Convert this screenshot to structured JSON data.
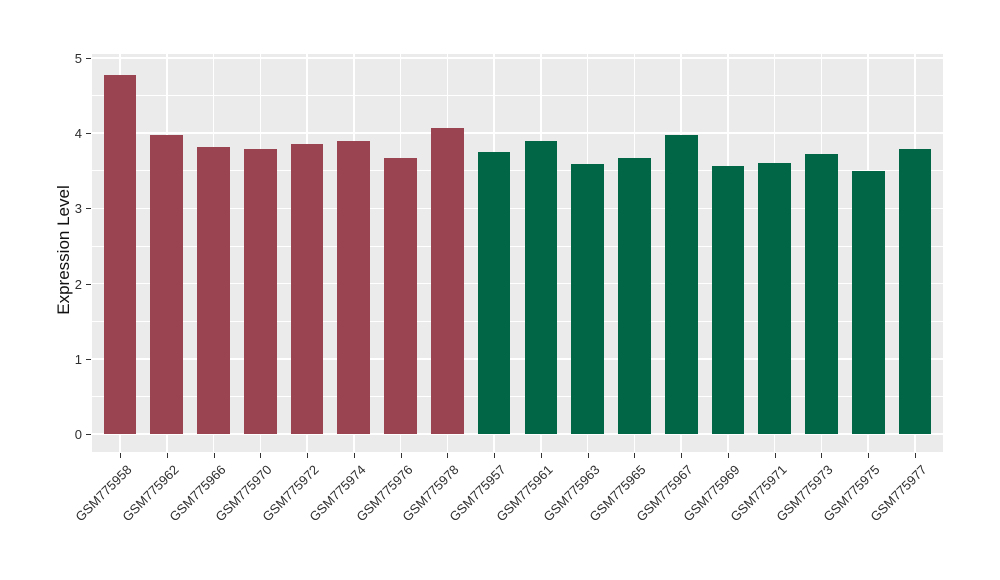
{
  "figure": {
    "background": "#ffffff"
  },
  "chart_data": {
    "type": "bar",
    "title": "",
    "xlabel": "",
    "ylabel": "Expression Level",
    "ylim": [
      0,
      5
    ],
    "yticks": [
      0,
      1,
      2,
      3,
      4,
      5
    ],
    "y_minor_ticks": [
      0.5,
      1.5,
      2.5,
      3.5,
      4.5
    ],
    "grid": "on",
    "legend": "none",
    "panel_background": "#ebebeb",
    "gridline_color": "#ffffff",
    "axis_text_color": "#2e2e2e",
    "categories": [
      "GSM775958",
      "GSM775962",
      "GSM775966",
      "GSM775970",
      "GSM775972",
      "GSM775974",
      "GSM775976",
      "GSM775978",
      "GSM775957",
      "GSM775961",
      "GSM775963",
      "GSM775965",
      "GSM775967",
      "GSM775969",
      "GSM775971",
      "GSM775973",
      "GSM775975",
      "GSM775977"
    ],
    "values": [
      4.78,
      3.98,
      3.81,
      3.79,
      3.86,
      3.9,
      3.67,
      4.07,
      3.75,
      3.9,
      3.59,
      3.67,
      3.97,
      3.57,
      3.61,
      3.72,
      3.5,
      3.79
    ],
    "groups": [
      "group1",
      "group1",
      "group1",
      "group1",
      "group1",
      "group1",
      "group1",
      "group1",
      "group2",
      "group2",
      "group2",
      "group2",
      "group2",
      "group2",
      "group2",
      "group2",
      "group2",
      "group2"
    ],
    "group_colors": {
      "group1": "#9a4452",
      "group2": "#006646"
    }
  }
}
